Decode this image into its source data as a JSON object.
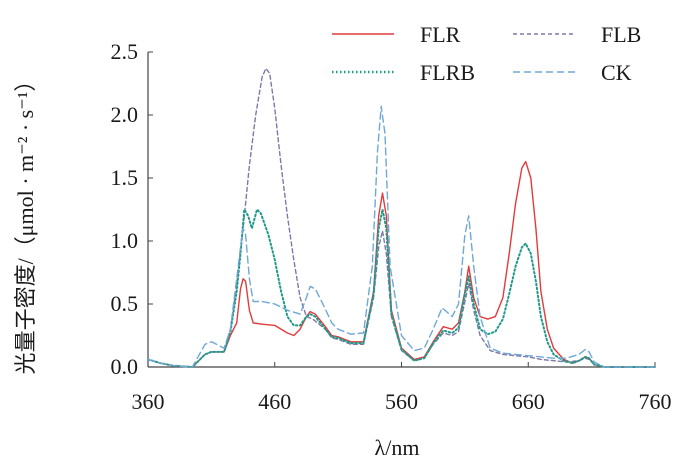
{
  "chart_data": {
    "type": "line",
    "title": "",
    "xlabel": "λ/nm",
    "ylabel": "光量子密度/(μmol·m⁻²·s⁻¹)",
    "ylabel_display": "光量子密度/（μmol · m⁻² · s⁻¹）",
    "xlim": [
      360,
      760
    ],
    "ylim": [
      0,
      2.5
    ],
    "xticks": [
      360,
      460,
      560,
      660,
      760
    ],
    "yticks": [
      0.0,
      0.5,
      1.0,
      1.5,
      2.0,
      2.5
    ],
    "ytick_labels": [
      "0.0",
      "0.5",
      "1.0",
      "1.5",
      "2.0",
      "2.5"
    ],
    "grid": false,
    "legend_position": "top-right",
    "series": [
      {
        "name": "FLR",
        "color": "#e23b3b",
        "style": "solid",
        "points": [
          [
            360,
            0.06
          ],
          [
            370,
            0.03
          ],
          [
            380,
            0.01
          ],
          [
            395,
            0.0
          ],
          [
            405,
            0.1
          ],
          [
            410,
            0.12
          ],
          [
            420,
            0.12
          ],
          [
            425,
            0.25
          ],
          [
            430,
            0.35
          ],
          [
            433,
            0.62
          ],
          [
            435,
            0.7
          ],
          [
            437,
            0.68
          ],
          [
            440,
            0.45
          ],
          [
            443,
            0.35
          ],
          [
            450,
            0.34
          ],
          [
            460,
            0.33
          ],
          [
            470,
            0.27
          ],
          [
            475,
            0.25
          ],
          [
            480,
            0.3
          ],
          [
            485,
            0.4
          ],
          [
            488,
            0.44
          ],
          [
            492,
            0.42
          ],
          [
            500,
            0.32
          ],
          [
            505,
            0.25
          ],
          [
            510,
            0.24
          ],
          [
            520,
            0.2
          ],
          [
            530,
            0.2
          ],
          [
            538,
            0.6
          ],
          [
            542,
            1.2
          ],
          [
            545,
            1.38
          ],
          [
            548,
            1.2
          ],
          [
            552,
            0.45
          ],
          [
            560,
            0.15
          ],
          [
            570,
            0.06
          ],
          [
            578,
            0.08
          ],
          [
            585,
            0.2
          ],
          [
            593,
            0.32
          ],
          [
            600,
            0.3
          ],
          [
            605,
            0.35
          ],
          [
            610,
            0.6
          ],
          [
            613,
            0.8
          ],
          [
            617,
            0.55
          ],
          [
            622,
            0.4
          ],
          [
            628,
            0.38
          ],
          [
            634,
            0.4
          ],
          [
            640,
            0.55
          ],
          [
            645,
            0.9
          ],
          [
            650,
            1.3
          ],
          [
            655,
            1.58
          ],
          [
            658,
            1.63
          ],
          [
            662,
            1.5
          ],
          [
            666,
            1.1
          ],
          [
            670,
            0.6
          ],
          [
            675,
            0.3
          ],
          [
            680,
            0.15
          ],
          [
            688,
            0.06
          ],
          [
            695,
            0.03
          ],
          [
            700,
            0.05
          ],
          [
            705,
            0.08
          ],
          [
            708,
            0.07
          ],
          [
            712,
            0.02
          ],
          [
            720,
            0.0
          ],
          [
            760,
            0.0
          ]
        ]
      },
      {
        "name": "FLB",
        "color": "#7f78a8",
        "style": "dashed",
        "points": [
          [
            360,
            0.06
          ],
          [
            370,
            0.03
          ],
          [
            380,
            0.01
          ],
          [
            395,
            0.0
          ],
          [
            405,
            0.1
          ],
          [
            410,
            0.12
          ],
          [
            420,
            0.12
          ],
          [
            425,
            0.3
          ],
          [
            430,
            0.65
          ],
          [
            435,
            1.1
          ],
          [
            440,
            1.6
          ],
          [
            445,
            2.0
          ],
          [
            450,
            2.3
          ],
          [
            453,
            2.37
          ],
          [
            456,
            2.33
          ],
          [
            460,
            2.05
          ],
          [
            465,
            1.6
          ],
          [
            470,
            1.2
          ],
          [
            475,
            0.85
          ],
          [
            480,
            0.55
          ],
          [
            485,
            0.4
          ],
          [
            490,
            0.38
          ],
          [
            500,
            0.3
          ],
          [
            505,
            0.23
          ],
          [
            510,
            0.22
          ],
          [
            520,
            0.18
          ],
          [
            530,
            0.18
          ],
          [
            538,
            0.55
          ],
          [
            542,
            0.95
          ],
          [
            545,
            1.08
          ],
          [
            548,
            0.9
          ],
          [
            552,
            0.4
          ],
          [
            560,
            0.13
          ],
          [
            570,
            0.05
          ],
          [
            578,
            0.07
          ],
          [
            585,
            0.18
          ],
          [
            593,
            0.27
          ],
          [
            600,
            0.25
          ],
          [
            605,
            0.28
          ],
          [
            610,
            0.52
          ],
          [
            613,
            0.66
          ],
          [
            617,
            0.45
          ],
          [
            622,
            0.25
          ],
          [
            630,
            0.13
          ],
          [
            640,
            0.1
          ],
          [
            650,
            0.09
          ],
          [
            660,
            0.08
          ],
          [
            670,
            0.06
          ],
          [
            680,
            0.05
          ],
          [
            690,
            0.04
          ],
          [
            700,
            0.05
          ],
          [
            705,
            0.07
          ],
          [
            708,
            0.06
          ],
          [
            712,
            0.02
          ],
          [
            720,
            0.0
          ],
          [
            760,
            0.0
          ]
        ]
      },
      {
        "name": "FLRB",
        "color": "#1f9a8a",
        "style": "dotted",
        "points": [
          [
            360,
            0.06
          ],
          [
            370,
            0.03
          ],
          [
            380,
            0.01
          ],
          [
            395,
            0.0
          ],
          [
            405,
            0.1
          ],
          [
            410,
            0.12
          ],
          [
            420,
            0.12
          ],
          [
            425,
            0.28
          ],
          [
            430,
            0.6
          ],
          [
            433,
            0.9
          ],
          [
            436,
            1.25
          ],
          [
            439,
            1.2
          ],
          [
            442,
            1.1
          ],
          [
            446,
            1.25
          ],
          [
            449,
            1.22
          ],
          [
            455,
            1.05
          ],
          [
            460,
            0.85
          ],
          [
            465,
            0.6
          ],
          [
            470,
            0.4
          ],
          [
            475,
            0.33
          ],
          [
            480,
            0.33
          ],
          [
            485,
            0.4
          ],
          [
            488,
            0.42
          ],
          [
            492,
            0.4
          ],
          [
            500,
            0.3
          ],
          [
            505,
            0.24
          ],
          [
            510,
            0.23
          ],
          [
            520,
            0.19
          ],
          [
            530,
            0.19
          ],
          [
            538,
            0.58
          ],
          [
            542,
            1.1
          ],
          [
            545,
            1.25
          ],
          [
            548,
            1.1
          ],
          [
            552,
            0.42
          ],
          [
            560,
            0.14
          ],
          [
            570,
            0.05
          ],
          [
            578,
            0.07
          ],
          [
            585,
            0.19
          ],
          [
            593,
            0.29
          ],
          [
            600,
            0.27
          ],
          [
            605,
            0.31
          ],
          [
            610,
            0.58
          ],
          [
            613,
            0.72
          ],
          [
            617,
            0.5
          ],
          [
            622,
            0.3
          ],
          [
            628,
            0.26
          ],
          [
            634,
            0.28
          ],
          [
            640,
            0.38
          ],
          [
            645,
            0.58
          ],
          [
            650,
            0.8
          ],
          [
            655,
            0.95
          ],
          [
            658,
            0.98
          ],
          [
            662,
            0.9
          ],
          [
            666,
            0.68
          ],
          [
            670,
            0.4
          ],
          [
            675,
            0.2
          ],
          [
            680,
            0.1
          ],
          [
            688,
            0.05
          ],
          [
            695,
            0.03
          ],
          [
            700,
            0.05
          ],
          [
            705,
            0.08
          ],
          [
            708,
            0.07
          ],
          [
            712,
            0.02
          ],
          [
            720,
            0.0
          ],
          [
            760,
            0.0
          ]
        ]
      },
      {
        "name": "CK",
        "color": "#6fa8d6",
        "style": "dashed",
        "points": [
          [
            360,
            0.06
          ],
          [
            370,
            0.03
          ],
          [
            380,
            0.01
          ],
          [
            395,
            0.0
          ],
          [
            405,
            0.18
          ],
          [
            410,
            0.2
          ],
          [
            420,
            0.15
          ],
          [
            425,
            0.3
          ],
          [
            430,
            0.7
          ],
          [
            433,
            0.95
          ],
          [
            435,
            1.1
          ],
          [
            437,
            1.05
          ],
          [
            440,
            0.7
          ],
          [
            443,
            0.52
          ],
          [
            450,
            0.52
          ],
          [
            460,
            0.5
          ],
          [
            470,
            0.45
          ],
          [
            480,
            0.42
          ],
          [
            485,
            0.55
          ],
          [
            488,
            0.64
          ],
          [
            492,
            0.62
          ],
          [
            498,
            0.5
          ],
          [
            505,
            0.35
          ],
          [
            510,
            0.3
          ],
          [
            520,
            0.26
          ],
          [
            530,
            0.27
          ],
          [
            537,
            0.8
          ],
          [
            541,
            1.7
          ],
          [
            544,
            2.07
          ],
          [
            547,
            1.85
          ],
          [
            551,
            0.8
          ],
          [
            560,
            0.25
          ],
          [
            570,
            0.13
          ],
          [
            578,
            0.15
          ],
          [
            585,
            0.3
          ],
          [
            592,
            0.47
          ],
          [
            600,
            0.4
          ],
          [
            605,
            0.5
          ],
          [
            610,
            1.05
          ],
          [
            613,
            1.2
          ],
          [
            617,
            0.8
          ],
          [
            622,
            0.4
          ],
          [
            630,
            0.15
          ],
          [
            640,
            0.11
          ],
          [
            650,
            0.1
          ],
          [
            660,
            0.09
          ],
          [
            670,
            0.08
          ],
          [
            680,
            0.07
          ],
          [
            690,
            0.07
          ],
          [
            700,
            0.1
          ],
          [
            705,
            0.14
          ],
          [
            708,
            0.12
          ],
          [
            712,
            0.04
          ],
          [
            720,
            0.0
          ],
          [
            760,
            0.0
          ]
        ]
      }
    ]
  }
}
